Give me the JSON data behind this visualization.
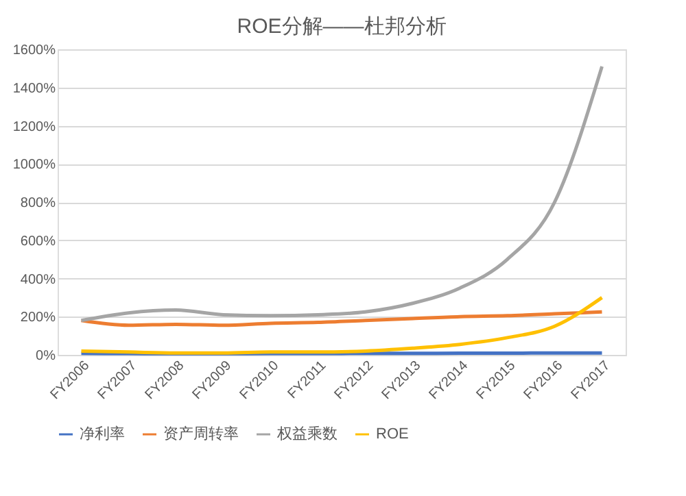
{
  "chart_data": {
    "type": "line",
    "title": "ROE分解——杜邦分析",
    "categories": [
      "FY2006",
      "FY2007",
      "FY2008",
      "FY2009",
      "FY2010",
      "FY2011",
      "FY2012",
      "FY2013",
      "FY2014",
      "FY2015",
      "FY2016",
      "FY2017"
    ],
    "series": [
      {
        "name": "净利率",
        "color": "#4472c4",
        "values": [
          8,
          7,
          6,
          6,
          7,
          7,
          8,
          8,
          9,
          9,
          10,
          10
        ]
      },
      {
        "name": "资产周转率",
        "color": "#ed7d31",
        "values": [
          180,
          155,
          160,
          155,
          165,
          170,
          180,
          190,
          200,
          205,
          215,
          225
        ]
      },
      {
        "name": "权益乘数",
        "color": "#a5a5a5",
        "values": [
          180,
          220,
          235,
          210,
          205,
          210,
          225,
          270,
          350,
          500,
          800,
          1510
        ]
      },
      {
        "name": "ROE",
        "color": "#ffc000",
        "values": [
          20,
          15,
          10,
          10,
          15,
          15,
          20,
          35,
          55,
          90,
          150,
          300
        ]
      }
    ],
    "ylim": [
      0,
      1600
    ],
    "yticks": [
      {
        "value": 0,
        "label": "0%"
      },
      {
        "value": 200,
        "label": "200%"
      },
      {
        "value": 400,
        "label": "400%"
      },
      {
        "value": 600,
        "label": "600%"
      },
      {
        "value": 800,
        "label": "800%"
      },
      {
        "value": 1000,
        "label": "1000%"
      },
      {
        "value": 1200,
        "label": "1200%"
      },
      {
        "value": 1400,
        "label": "1400%"
      },
      {
        "value": 1600,
        "label": "1600%"
      }
    ],
    "grid": "y",
    "legend": "bottom",
    "marker": "none",
    "line_style": "solid"
  }
}
